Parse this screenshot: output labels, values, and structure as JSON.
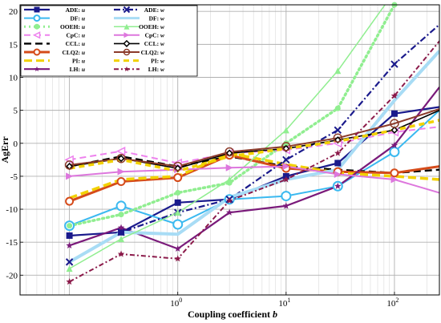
{
  "chart_data": {
    "type": "line",
    "title": "",
    "xlabel_text": "Coupling coefficient ",
    "xlabel_var": "b",
    "ylabel": "AgErr",
    "xscale": "log",
    "xlim": [
      0.035,
      260
    ],
    "ylim": [
      -23,
      21
    ],
    "grid": true,
    "legend_position": "top-left",
    "x": [
      0.1,
      0.3,
      1,
      3,
      10,
      30,
      100,
      260
    ],
    "yticks": [
      -20,
      -15,
      -10,
      -5,
      0,
      5,
      10,
      15,
      20
    ],
    "yticklabels": [
      "-20",
      "-15",
      "-10",
      "-5",
      "0",
      "5",
      "10",
      "15",
      "20"
    ],
    "xticks": [
      1,
      10,
      100
    ],
    "xticklabels": [
      {
        "base": "10",
        "exp": "0"
      },
      {
        "base": "10",
        "exp": "1"
      },
      {
        "base": "10",
        "exp": "2"
      }
    ],
    "series": [
      {
        "name": "ADE: u",
        "var": "u",
        "color": "#1a1a8c",
        "dash": "",
        "width": 2.2,
        "marker": "square",
        "markerSize": 4,
        "values": [
          -14,
          -13.5,
          -9,
          -8.5,
          -5,
          -3,
          4.5,
          5.5
        ]
      },
      {
        "name": "DF: u",
        "var": "u",
        "color": "#3bb9f0",
        "dash": "",
        "width": 2,
        "marker": "circle",
        "markerSize": 5.5,
        "values": [
          -12.5,
          -9.5,
          -12.3,
          -8.5,
          -8,
          -6.5,
          -1.3,
          5
        ]
      },
      {
        "name": "OOEH: u",
        "var": "u",
        "color": "#90ee90",
        "dash": "2,4",
        "width": 3.5,
        "marker": "dot",
        "markerSize": 3.5,
        "values": [
          -12.5,
          -10.8,
          -7.5,
          -6,
          0,
          5.3,
          21,
          23
        ]
      },
      {
        "name": "CpC: u",
        "var": "u",
        "color": "#ee82ee",
        "dash": "8,5",
        "width": 2,
        "marker": "triangle-left",
        "markerSize": 4.5,
        "values": [
          -2.5,
          -1.2,
          -3,
          -1.5,
          -1,
          0,
          1.7,
          2.5
        ]
      },
      {
        "name": "CCL: u",
        "var": "u",
        "color": "#000000",
        "dash": "9,5",
        "width": 2.4,
        "marker": "none",
        "markerSize": 0,
        "values": [
          -3.5,
          -2,
          -3.5,
          -2,
          -3.5,
          -4,
          -4.5,
          -4
        ]
      },
      {
        "name": "CLQ2: u",
        "var": "u",
        "color": "#d54b1a",
        "dash": "",
        "width": 3,
        "marker": "circle",
        "markerSize": 4.5,
        "values": [
          -8.8,
          -5.8,
          -5.2,
          -1.8,
          -3.8,
          -4.3,
          -4.5,
          -3.5
        ]
      },
      {
        "name": "PI: u",
        "var": "u",
        "color": "#f2d100",
        "dash": "10,5",
        "width": 3.5,
        "marker": "none",
        "markerSize": 0,
        "values": [
          -8.3,
          -5.5,
          -5,
          -1.5,
          -3.2,
          -4.5,
          -5,
          -5.5
        ]
      },
      {
        "name": "LH: u",
        "var": "u",
        "color": "#7a1a7a",
        "dash": "",
        "width": 2.2,
        "marker": "star",
        "markerSize": 4.5,
        "values": [
          -15.5,
          -12.8,
          -16,
          -10.5,
          -9.5,
          -6.5,
          -0.3,
          8.5
        ]
      },
      {
        "name": "ADE: w",
        "var": "w",
        "color": "#1a1a8c",
        "dash": "8,3,2,3",
        "width": 2.2,
        "marker": "x",
        "markerSize": 4,
        "values": [
          -18,
          -13.5,
          -10.5,
          -8.5,
          -2.5,
          2,
          12,
          18
        ]
      },
      {
        "name": "DF: w",
        "var": "w",
        "color": "#a8dcf5",
        "dash": "",
        "width": 4,
        "marker": "none",
        "markerSize": 0,
        "values": [
          -18,
          -13.5,
          -13.8,
          -8.2,
          -5.5,
          -4,
          6.5,
          14
        ]
      },
      {
        "name": "OOEH: w",
        "var": "w",
        "color": "#90ee90",
        "dash": "",
        "width": 1.5,
        "marker": "triangle-up",
        "markerSize": 4,
        "values": [
          -19,
          -14.5,
          -10.5,
          -5.5,
          2,
          11,
          23,
          23
        ]
      },
      {
        "name": "CpC: w",
        "var": "w",
        "color": "#dd77dd",
        "dash": "",
        "width": 2,
        "marker": "triangle-right",
        "markerSize": 4.5,
        "values": [
          -5,
          -4.3,
          -4,
          -3.7,
          -3.5,
          -4.7,
          -5.5,
          -7.5
        ]
      },
      {
        "name": "CCL: w",
        "var": "w",
        "color": "#000000",
        "dash": "",
        "width": 1.6,
        "marker": "diamond",
        "markerSize": 3.5,
        "values": [
          -3.5,
          -2.3,
          -3.8,
          -1.5,
          -0.8,
          0.5,
          2,
          5
        ]
      },
      {
        "name": "CLQ2: w",
        "var": "w",
        "color": "#8b3a2a",
        "dash": "",
        "width": 2,
        "marker": "circle-open",
        "markerSize": 5,
        "values": [
          -3.3,
          -2.3,
          -3.5,
          -1.3,
          -0.5,
          0.8,
          3,
          5.2
        ]
      },
      {
        "name": "PI: w",
        "var": "w",
        "color": "#f2d100",
        "dash": "7,5",
        "width": 3.5,
        "marker": "none",
        "markerSize": 0,
        "values": [
          -3.8,
          -2.5,
          -4.2,
          -2,
          -0.8,
          0.3,
          2,
          3.5
        ]
      },
      {
        "name": "LH: w",
        "var": "w",
        "color": "#8b1a4a",
        "dash": "6,3,2,3",
        "width": 2,
        "marker": "star",
        "markerSize": 4.5,
        "values": [
          -21,
          -16.8,
          -17.5,
          -8.7,
          -5.5,
          -1.5,
          7.2,
          15.5
        ]
      }
    ]
  }
}
